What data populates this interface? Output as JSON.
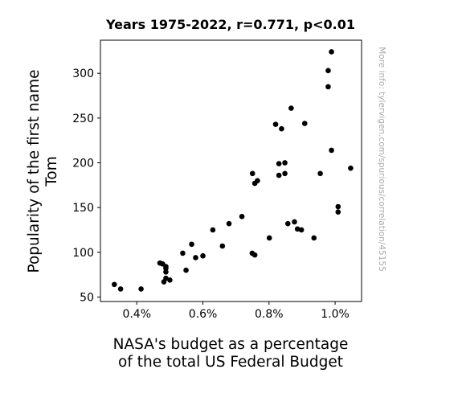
{
  "chart_data": {
    "type": "scatter",
    "title": "Years 1975-2022, r=0.771, p<0.01",
    "xlabel": [
      "NASA's budget as a percentage",
      "of the total US Federal Budget"
    ],
    "ylabel": [
      "Popularity of the first name",
      "Tom"
    ],
    "xlim": [
      0.0029,
      0.0108
    ],
    "ylim": [
      45,
      337
    ],
    "x_ticks": [
      0.004,
      0.006,
      0.008,
      0.01
    ],
    "x_tick_labels": [
      "0.4%",
      "0.6%",
      "0.8%",
      "1.0%"
    ],
    "y_ticks": [
      50,
      100,
      150,
      200,
      250,
      300
    ],
    "y_tick_labels": [
      "50",
      "100",
      "150",
      "200",
      "250",
      "300"
    ],
    "grid": false,
    "watermark": "More info: tylervigen.com/spurious/correlation/45155",
    "point_color": "#000000",
    "points": [
      [
        0.00332,
        64
      ],
      [
        0.00351,
        59
      ],
      [
        0.00413,
        59
      ],
      [
        0.0047,
        88
      ],
      [
        0.00478,
        87
      ],
      [
        0.00482,
        67
      ],
      [
        0.00488,
        84
      ],
      [
        0.00488,
        82
      ],
      [
        0.00488,
        78
      ],
      [
        0.00488,
        71
      ],
      [
        0.005,
        69
      ],
      [
        0.00539,
        99
      ],
      [
        0.00549,
        80
      ],
      [
        0.00566,
        109
      ],
      [
        0.00578,
        94
      ],
      [
        0.006,
        96
      ],
      [
        0.0063,
        125
      ],
      [
        0.00659,
        107
      ],
      [
        0.00679,
        132
      ],
      [
        0.00718,
        140
      ],
      [
        0.00749,
        99
      ],
      [
        0.00757,
        97
      ],
      [
        0.0075,
        188
      ],
      [
        0.00757,
        177
      ],
      [
        0.00765,
        180
      ],
      [
        0.00801,
        116
      ],
      [
        0.0082,
        243
      ],
      [
        0.0083,
        199
      ],
      [
        0.0083,
        186
      ],
      [
        0.00838,
        238
      ],
      [
        0.00848,
        200
      ],
      [
        0.00848,
        188
      ],
      [
        0.00857,
        132
      ],
      [
        0.00867,
        261
      ],
      [
        0.00877,
        134
      ],
      [
        0.00886,
        126
      ],
      [
        0.00898,
        125
      ],
      [
        0.00908,
        244
      ],
      [
        0.00936,
        116
      ],
      [
        0.00955,
        188
      ],
      [
        0.00979,
        303
      ],
      [
        0.00979,
        285
      ],
      [
        0.00989,
        324
      ],
      [
        0.00989,
        214
      ],
      [
        0.01009,
        151
      ],
      [
        0.01009,
        145
      ],
      [
        0.01047,
        194
      ]
    ]
  }
}
